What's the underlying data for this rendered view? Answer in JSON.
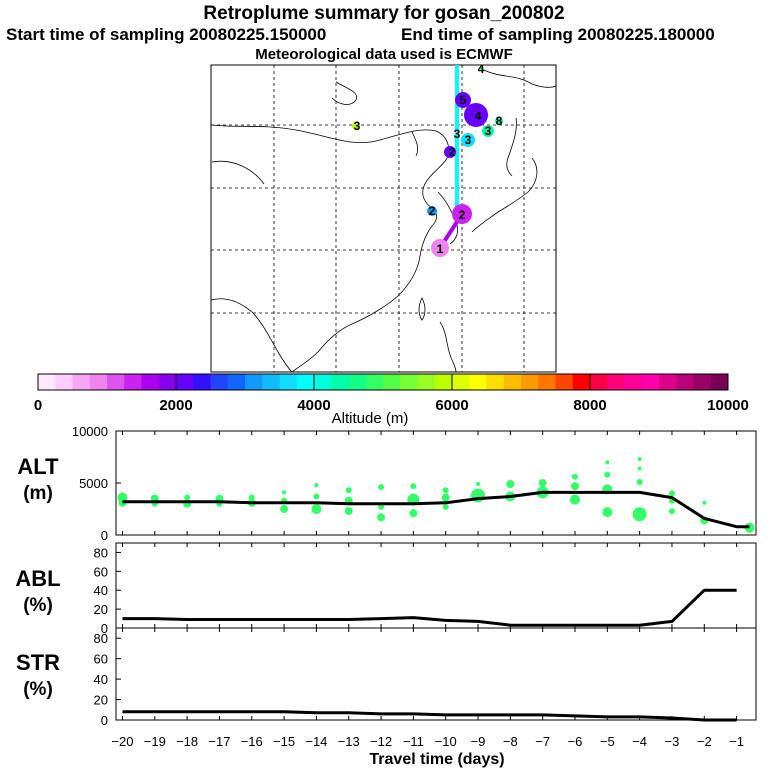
{
  "header": {
    "title": "Retroplume summary for gosan_200802",
    "start_label": "Start time of sampling 20080225.150000",
    "end_label": "End time of sampling 20080225.180000",
    "met_label": "Meteorological data used is ECMWF"
  },
  "colorbar": {
    "label": "Altitude (m)",
    "ticks": [
      "0",
      "2000",
      "4000",
      "6000",
      "8000",
      "10000"
    ],
    "colors": [
      "#ffe9ff",
      "#ffccff",
      "#f6a8f6",
      "#ee84ee",
      "#dd55ee",
      "#cc22ee",
      "#aa00ee",
      "#8800ee",
      "#6600ff",
      "#3311ff",
      "#2244ff",
      "#1166ff",
      "#1199ff",
      "#11bbff",
      "#11ddff",
      "#00ffff",
      "#00ffdd",
      "#00ffaa",
      "#11ff88",
      "#33ff66",
      "#55ff44",
      "#77ff33",
      "#99ff22",
      "#bbff00",
      "#ddff00",
      "#ffff00",
      "#ffdd00",
      "#ffbb00",
      "#ff9900",
      "#ff7700",
      "#ff4400",
      "#ff0000",
      "#ff0044",
      "#ff0077",
      "#ff0099",
      "#ff00aa",
      "#dd0088",
      "#bb0077",
      "#990066",
      "#770055"
    ]
  },
  "map": {
    "labels": [
      {
        "text": "1"
      },
      {
        "text": "2"
      },
      {
        "text": "2"
      },
      {
        "text": "2"
      },
      {
        "text": "3"
      },
      {
        "text": "3"
      },
      {
        "text": "3"
      },
      {
        "text": "3"
      },
      {
        "text": "4"
      },
      {
        "text": "4"
      },
      {
        "text": "5"
      },
      {
        "text": "8"
      }
    ]
  },
  "panels": {
    "alt": {
      "label": "ALT",
      "unit": "(m)"
    },
    "abl": {
      "label": "ABL",
      "unit": "(%)"
    },
    "str": {
      "label": "STR",
      "unit": "(%)"
    }
  },
  "xaxis": {
    "label": "Travel time (days)",
    "ticks": [
      "−20",
      "−19",
      "−18",
      "−17",
      "−16",
      "−15",
      "−14",
      "−13",
      "−12",
      "−11",
      "−10",
      "−9",
      "−8",
      "−7",
      "−6",
      "−5",
      "−4",
      "−3",
      "−2",
      "−1"
    ]
  },
  "chart_data": [
    {
      "type": "line",
      "title": "ALT",
      "xlabel": "Travel time (days)",
      "ylabel": "(m)",
      "ylim": [
        0,
        10000
      ],
      "yticks": [
        "10000",
        "5000",
        "0"
      ],
      "x": [
        -20,
        -19,
        -18,
        -17,
        -16,
        -15,
        -14,
        -13,
        -12,
        -11,
        -10,
        -9,
        -8,
        -7,
        -6,
        -5,
        -4,
        -3,
        -2,
        -1,
        -0.6
      ],
      "series": [
        {
          "name": "median altitude",
          "values": [
            3200,
            3200,
            3200,
            3200,
            3100,
            3100,
            3100,
            3000,
            3000,
            3000,
            3100,
            3500,
            3700,
            4100,
            4100,
            4100,
            4100,
            3600,
            1600,
            800,
            800
          ]
        }
      ],
      "scatter": [
        {
          "x": -20,
          "y": 3600,
          "r": 5
        },
        {
          "x": -20,
          "y": 3100,
          "r": 4
        },
        {
          "x": -19,
          "y": 3500,
          "r": 4
        },
        {
          "x": -19,
          "y": 3000,
          "r": 3
        },
        {
          "x": -18,
          "y": 3600,
          "r": 3
        },
        {
          "x": -18,
          "y": 3000,
          "r": 4
        },
        {
          "x": -17,
          "y": 3500,
          "r": 4
        },
        {
          "x": -17,
          "y": 3000,
          "r": 3
        },
        {
          "x": -16,
          "y": 3600,
          "r": 3
        },
        {
          "x": -16,
          "y": 3100,
          "r": 4
        },
        {
          "x": -15,
          "y": 4100,
          "r": 2
        },
        {
          "x": -15,
          "y": 3300,
          "r": 3
        },
        {
          "x": -15,
          "y": 2500,
          "r": 4
        },
        {
          "x": -14,
          "y": 4800,
          "r": 2
        },
        {
          "x": -14,
          "y": 3700,
          "r": 3
        },
        {
          "x": -14,
          "y": 2500,
          "r": 5
        },
        {
          "x": -13,
          "y": 4300,
          "r": 3
        },
        {
          "x": -13,
          "y": 3300,
          "r": 4
        },
        {
          "x": -13,
          "y": 2300,
          "r": 4
        },
        {
          "x": -12,
          "y": 4600,
          "r": 3
        },
        {
          "x": -12,
          "y": 2700,
          "r": 3
        },
        {
          "x": -12,
          "y": 1700,
          "r": 4
        },
        {
          "x": -11,
          "y": 4700,
          "r": 3
        },
        {
          "x": -11,
          "y": 3400,
          "r": 6
        },
        {
          "x": -11,
          "y": 2100,
          "r": 4
        },
        {
          "x": -10,
          "y": 4300,
          "r": 3
        },
        {
          "x": -10,
          "y": 3600,
          "r": 4
        },
        {
          "x": -10,
          "y": 2700,
          "r": 3
        },
        {
          "x": -9,
          "y": 4900,
          "r": 2
        },
        {
          "x": -9,
          "y": 3800,
          "r": 7
        },
        {
          "x": -8,
          "y": 4900,
          "r": 4
        },
        {
          "x": -8,
          "y": 3700,
          "r": 5
        },
        {
          "x": -7,
          "y": 5000,
          "r": 4
        },
        {
          "x": -7,
          "y": 4100,
          "r": 6
        },
        {
          "x": -6,
          "y": 5600,
          "r": 3
        },
        {
          "x": -6,
          "y": 4700,
          "r": 4
        },
        {
          "x": -6,
          "y": 3400,
          "r": 5
        },
        {
          "x": -5,
          "y": 7000,
          "r": 2
        },
        {
          "x": -5,
          "y": 5800,
          "r": 3
        },
        {
          "x": -5,
          "y": 4400,
          "r": 5
        },
        {
          "x": -5,
          "y": 2200,
          "r": 5
        },
        {
          "x": -4,
          "y": 7300,
          "r": 2
        },
        {
          "x": -4,
          "y": 6400,
          "r": 2
        },
        {
          "x": -4,
          "y": 5100,
          "r": 3
        },
        {
          "x": -4,
          "y": 2000,
          "r": 7
        },
        {
          "x": -3,
          "y": 4000,
          "r": 3
        },
        {
          "x": -3,
          "y": 3300,
          "r": 3
        },
        {
          "x": -3,
          "y": 2300,
          "r": 3
        },
        {
          "x": -2,
          "y": 3100,
          "r": 2
        },
        {
          "x": -2,
          "y": 1400,
          "r": 4
        },
        {
          "x": -0.6,
          "y": 700,
          "r": 5
        }
      ]
    },
    {
      "type": "line",
      "title": "ABL",
      "xlabel": "Travel time (days)",
      "ylabel": "(%)",
      "ylim": [
        0,
        90
      ],
      "yticks": [
        "80",
        "60",
        "40",
        "20",
        "0"
      ],
      "x": [
        -20,
        -19,
        -18,
        -17,
        -16,
        -15,
        -14,
        -13,
        -12,
        -11,
        -10,
        -9,
        -8,
        -7,
        -6,
        -5,
        -4,
        -3,
        -2,
        -1
      ],
      "series": [
        {
          "name": "ABL fraction",
          "values": [
            10,
            10,
            9,
            9,
            9,
            9,
            9,
            9,
            10,
            11,
            8,
            7,
            3,
            3,
            3,
            3,
            3,
            7,
            40,
            40
          ]
        }
      ]
    },
    {
      "type": "line",
      "title": "STR",
      "xlabel": "Travel time (days)",
      "ylabel": "(%)",
      "ylim": [
        0,
        90
      ],
      "yticks": [
        "80",
        "60",
        "40",
        "20",
        "0"
      ],
      "x": [
        -20,
        -19,
        -18,
        -17,
        -16,
        -15,
        -14,
        -13,
        -12,
        -11,
        -10,
        -9,
        -8,
        -7,
        -6,
        -5,
        -4,
        -3,
        -2,
        -1
      ],
      "series": [
        {
          "name": "STR fraction",
          "values": [
            8,
            8,
            8,
            8,
            8,
            8,
            7,
            7,
            6,
            6,
            5,
            5,
            5,
            5,
            4,
            3,
            3,
            2,
            0,
            0
          ]
        }
      ]
    }
  ]
}
